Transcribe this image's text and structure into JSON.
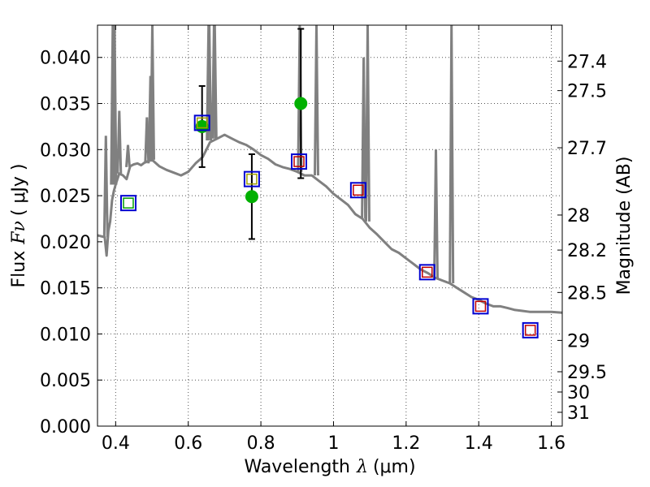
{
  "chart_data": {
    "type": "scatter",
    "title": "",
    "xlabel": "Wavelength",
    "xlabel_symbol": "λ",
    "xlabel_unit": "(μm)",
    "ylabel": "Flux",
    "ylabel_symbol": "Fν",
    "ylabel_unit": "( μJy )",
    "y2label": "Magnitude (AB)",
    "xlim": [
      0.35,
      1.63
    ],
    "ylim": [
      0.0,
      0.0435
    ],
    "grid": true,
    "x_ticks": [
      0.4,
      0.6,
      0.8,
      1.0,
      1.2,
      1.4,
      1.6
    ],
    "x_tick_labels": [
      "0.4",
      "0.6",
      "0.8",
      "1",
      "1.2",
      "1.4",
      "1.6"
    ],
    "y_ticks": [
      0.0,
      0.005,
      0.01,
      0.015,
      0.02,
      0.025,
      0.03,
      0.035,
      0.04
    ],
    "y_tick_labels": [
      "0.000",
      "0.005",
      "0.010",
      "0.015",
      "0.020",
      "0.025",
      "0.030",
      "0.035",
      "0.040"
    ],
    "y2_ticks": [
      {
        "label": "27.4",
        "flux": 0.0396
      },
      {
        "label": "27.5",
        "flux": 0.0364
      },
      {
        "label": "27.7",
        "flux": 0.0302
      },
      {
        "label": "28",
        "flux": 0.0229
      },
      {
        "label": "28.2",
        "flux": 0.0191
      },
      {
        "label": "28.5",
        "flux": 0.0145
      },
      {
        "label": "29",
        "flux": 0.0093
      },
      {
        "label": "29.5",
        "flux": 0.0059
      },
      {
        "label": "30",
        "flux": 0.0037
      },
      {
        "label": "31",
        "flux": 0.0015
      }
    ],
    "series": [
      {
        "name": "model spectrum",
        "style": "line",
        "color": "#808080",
        "x": [
          0.35,
          0.37,
          0.375,
          0.38,
          0.385,
          0.39,
          0.395,
          0.4,
          0.41,
          0.42,
          0.43,
          0.44,
          0.45,
          0.46,
          0.47,
          0.48,
          0.5,
          0.52,
          0.54,
          0.56,
          0.58,
          0.6,
          0.62,
          0.64,
          0.66,
          0.68,
          0.7,
          0.72,
          0.74,
          0.76,
          0.78,
          0.8,
          0.82,
          0.84,
          0.86,
          0.88,
          0.9,
          0.92,
          0.94,
          0.96,
          0.98,
          1.0,
          1.02,
          1.04,
          1.06,
          1.08,
          1.1,
          1.12,
          1.14,
          1.16,
          1.18,
          1.2,
          1.22,
          1.24,
          1.26,
          1.28,
          1.3,
          1.32,
          1.34,
          1.36,
          1.38,
          1.4,
          1.42,
          1.44,
          1.46,
          1.48,
          1.5,
          1.52,
          1.54,
          1.56,
          1.58,
          1.6,
          1.63
        ],
        "y": [
          0.0207,
          0.0205,
          0.0185,
          0.0212,
          0.0222,
          0.0245,
          0.0255,
          0.0262,
          0.0274,
          0.0272,
          0.0268,
          0.0282,
          0.0284,
          0.0285,
          0.0283,
          0.0286,
          0.0289,
          0.0282,
          0.0278,
          0.0275,
          0.0272,
          0.0276,
          0.0285,
          0.0292,
          0.0308,
          0.0312,
          0.0316,
          0.0312,
          0.0308,
          0.0305,
          0.03,
          0.0294,
          0.029,
          0.0284,
          0.0281,
          0.0279,
          0.0276,
          0.0272,
          0.0272,
          0.0266,
          0.026,
          0.0252,
          0.0246,
          0.024,
          0.023,
          0.0225,
          0.0215,
          0.0208,
          0.02,
          0.0192,
          0.0188,
          0.0182,
          0.0176,
          0.017,
          0.0166,
          0.0161,
          0.0158,
          0.0155,
          0.015,
          0.0145,
          0.014,
          0.0137,
          0.0133,
          0.013,
          0.013,
          0.0128,
          0.0126,
          0.0125,
          0.0124,
          0.0124,
          0.0124,
          0.0124,
          0.0123
        ]
      },
      {
        "name": "emission lines",
        "style": "spikes",
        "color": "#808080",
        "x": [
          0.373,
          0.392,
          0.397,
          0.41,
          0.434,
          0.486,
          0.496,
          0.501,
          0.656,
          0.658,
          0.671,
          0.673,
          0.907,
          0.953,
          1.083,
          1.094,
          1.282,
          1.325
        ],
        "base": [
          0.0205,
          0.0262,
          0.0262,
          0.0274,
          0.0281,
          0.0285,
          0.0287,
          0.0289,
          0.031,
          0.031,
          0.0312,
          0.0312,
          0.0276,
          0.0272,
          0.0225,
          0.0222,
          0.016,
          0.0155
        ],
        "peak": [
          0.0315,
          0.0435,
          0.0435,
          0.0342,
          0.0305,
          0.0335,
          0.038,
          0.0435,
          0.0435,
          0.0435,
          0.0435,
          0.0435,
          0.0435,
          0.0435,
          0.04,
          0.0435,
          0.03,
          0.0435
        ]
      },
      {
        "name": "observed photometry",
        "style": "points-errorbars",
        "marker": "filled-circle",
        "color": "#00b000",
        "x": [
          0.435,
          0.638,
          0.775,
          0.91
        ],
        "y": [
          0.0242,
          0.0325,
          0.0249,
          0.035
        ],
        "yerr": [
          0.0,
          0.0044,
          0.0046,
          0.0081
        ]
      },
      {
        "name": "model photometry",
        "style": "points",
        "marker": "open-square",
        "color": "#0000d0",
        "x": [
          0.435,
          0.638,
          0.775,
          0.905,
          1.068,
          1.258,
          1.405,
          1.542
        ],
        "y": [
          0.0242,
          0.0329,
          0.0268,
          0.0287,
          0.0256,
          0.0167,
          0.013,
          0.0104
        ]
      },
      {
        "name": "predicted photometry",
        "style": "points",
        "marker": "small-open-square",
        "colors": [
          "#00a000",
          "#a0a000",
          "#a0a000",
          "#c00000",
          "#c00000",
          "#c00000",
          "#c00000",
          "#c00000"
        ],
        "x": [
          0.435,
          0.638,
          0.775,
          0.905,
          1.068,
          1.258,
          1.405,
          1.542
        ],
        "y": [
          0.0242,
          0.0329,
          0.0268,
          0.0287,
          0.0256,
          0.0167,
          0.013,
          0.0104
        ]
      }
    ]
  }
}
